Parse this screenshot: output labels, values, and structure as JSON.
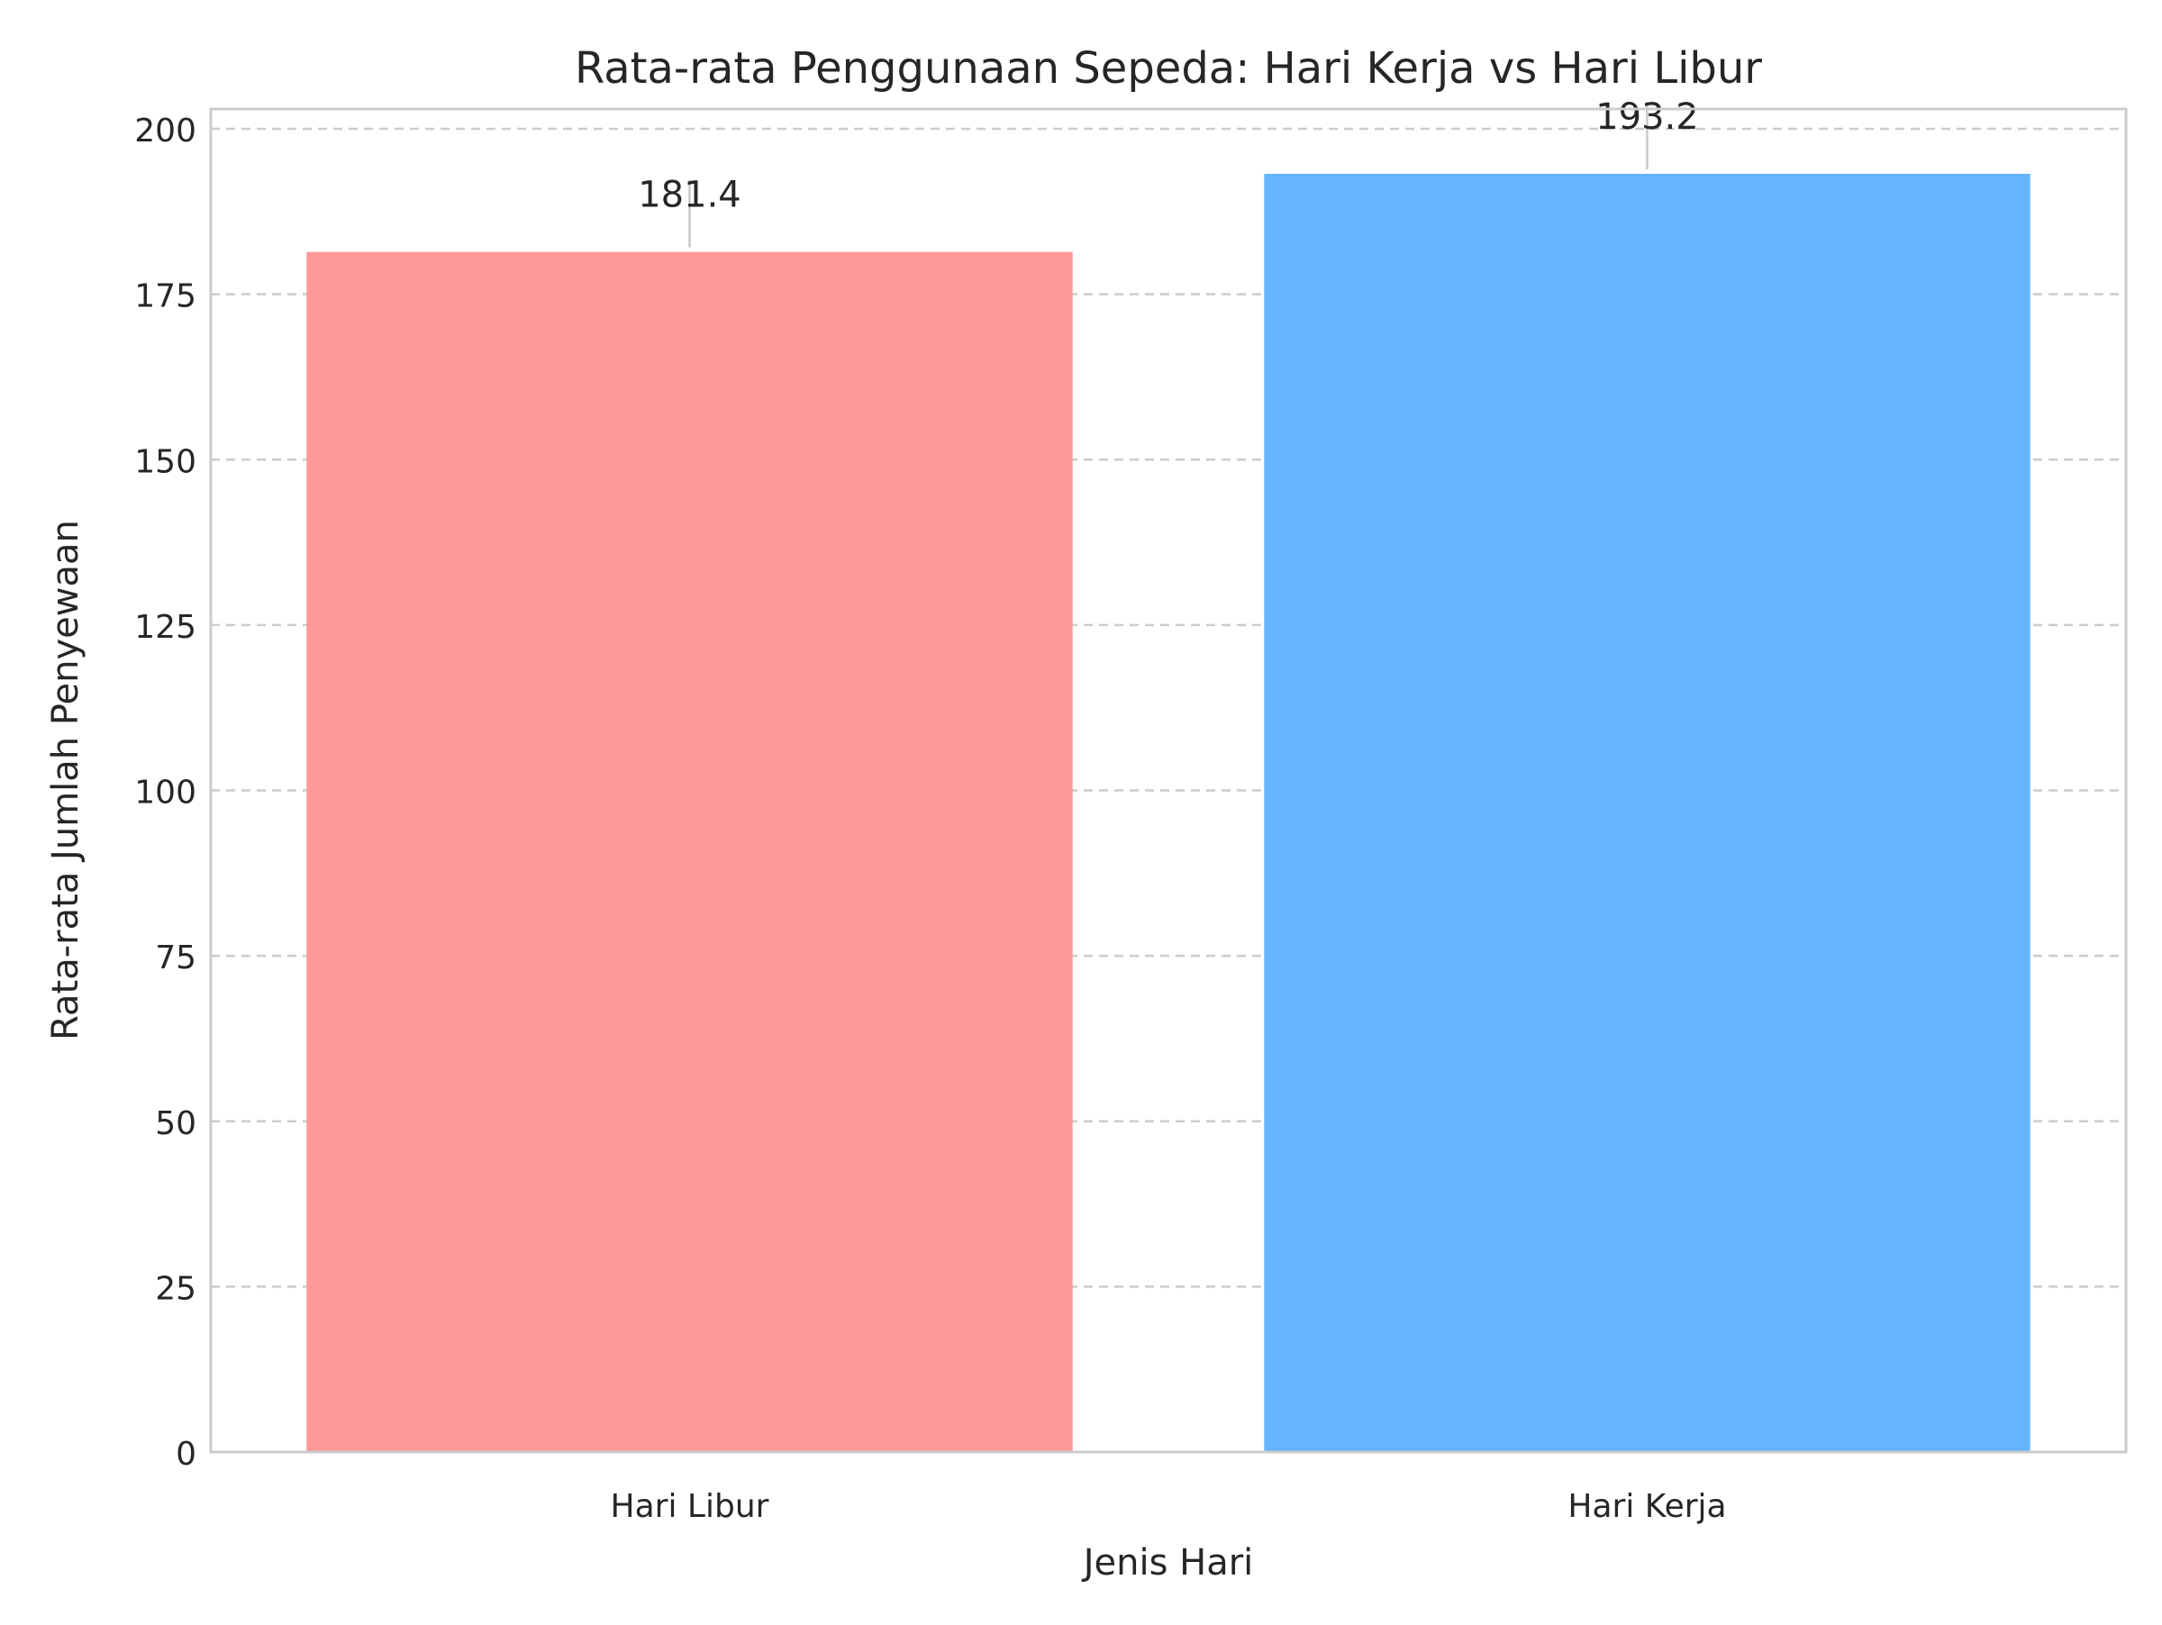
{
  "chart_data": {
    "type": "bar",
    "title": "Rata-rata Penggunaan Sepeda: Hari Kerja vs Hari Libur",
    "xlabel": "Jenis Hari",
    "ylabel": "Rata-rata Jumlah Penyewaan",
    "categories": [
      "Hari Libur",
      "Hari Kerja"
    ],
    "values": [
      181.4,
      193.2
    ],
    "value_labels": [
      "181.4",
      "193.2"
    ],
    "colors": [
      "#ff9999",
      "#66b3ff"
    ],
    "ylim": [
      0,
      203
    ],
    "yticks": [
      0,
      25,
      50,
      75,
      100,
      125,
      150,
      175,
      200
    ],
    "grid": "y-dashed",
    "legend": "none"
  }
}
